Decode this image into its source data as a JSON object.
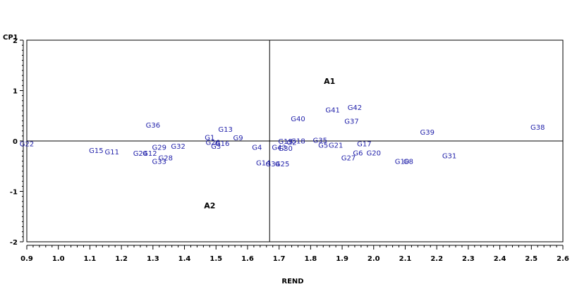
{
  "chart_data": {
    "type": "scatter",
    "title": "",
    "xlabel": "REND",
    "ylabel": "CP1",
    "xlim": [
      0.9,
      2.6
    ],
    "ylim": [
      -2,
      2
    ],
    "x_ticks": [
      "0.9",
      "1.0",
      "1.1",
      "1.2",
      "1.3",
      "1.4",
      "1.5",
      "1.6",
      "1.7",
      "1.8",
      "1.9",
      "2.0",
      "2.1",
      "2.2",
      "2.3",
      "2.4",
      "2.5",
      "2.6"
    ],
    "y_ticks": [
      "2",
      "1",
      "0",
      "-1",
      "-2"
    ],
    "reference_lines": {
      "x": 1.67,
      "y": 0
    },
    "grid": false,
    "label_color": "#2222aa",
    "environment_color": "#000000",
    "series": [
      {
        "name": "",
        "points": [
          {
            "label": "G22",
            "x": 0.9,
            "y": -0.05
          },
          {
            "label": "G15",
            "x": 1.12,
            "y": -0.18
          },
          {
            "label": "G11",
            "x": 1.17,
            "y": -0.21
          },
          {
            "label": "G24",
            "x": 1.26,
            "y": -0.24
          },
          {
            "label": "G12",
            "x": 1.29,
            "y": -0.24
          },
          {
            "label": "G29",
            "x": 1.32,
            "y": -0.12
          },
          {
            "label": "G32",
            "x": 1.38,
            "y": -0.1
          },
          {
            "label": "G33",
            "x": 1.32,
            "y": -0.4
          },
          {
            "label": "G28",
            "x": 1.34,
            "y": -0.33
          },
          {
            "label": "G36",
            "x": 1.3,
            "y": 0.32
          },
          {
            "label": "G1",
            "x": 1.48,
            "y": 0.08
          },
          {
            "label": "G13",
            "x": 1.53,
            "y": 0.24
          },
          {
            "label": "G9",
            "x": 1.57,
            "y": 0.07
          },
          {
            "label": "G26",
            "x": 1.49,
            "y": -0.02
          },
          {
            "label": "G16",
            "x": 1.52,
            "y": -0.04
          },
          {
            "label": "G3",
            "x": 1.5,
            "y": -0.1
          },
          {
            "label": "G4",
            "x": 1.63,
            "y": -0.12
          },
          {
            "label": "G14",
            "x": 1.65,
            "y": -0.43
          },
          {
            "label": "G34",
            "x": 1.68,
            "y": -0.45
          },
          {
            "label": "G25",
            "x": 1.71,
            "y": -0.45
          },
          {
            "label": "G40",
            "x": 1.76,
            "y": 0.45
          },
          {
            "label": "G41",
            "x": 1.87,
            "y": 0.62
          },
          {
            "label": "G42",
            "x": 1.94,
            "y": 0.67
          },
          {
            "label": "G37",
            "x": 1.93,
            "y": 0.4
          },
          {
            "label": "G19",
            "x": 1.72,
            "y": 0.0
          },
          {
            "label": "G2",
            "x": 1.74,
            "y": -0.02
          },
          {
            "label": "G18",
            "x": 1.76,
            "y": 0.01
          },
          {
            "label": "G30",
            "x": 1.72,
            "y": -0.14
          },
          {
            "label": "G43",
            "x": 1.7,
            "y": -0.12
          },
          {
            "label": "G35",
            "x": 1.83,
            "y": 0.02
          },
          {
            "label": "G5",
            "x": 1.84,
            "y": -0.08
          },
          {
            "label": "G21",
            "x": 1.88,
            "y": -0.08
          },
          {
            "label": "G17",
            "x": 1.97,
            "y": -0.05
          },
          {
            "label": "G6",
            "x": 1.95,
            "y": -0.23
          },
          {
            "label": "G27",
            "x": 1.92,
            "y": -0.33
          },
          {
            "label": "G20",
            "x": 2.0,
            "y": -0.23
          },
          {
            "label": "G10",
            "x": 2.09,
            "y": -0.4
          },
          {
            "label": "G8",
            "x": 2.11,
            "y": -0.4
          },
          {
            "label": "G39",
            "x": 2.17,
            "y": 0.18
          },
          {
            "label": "G31",
            "x": 2.24,
            "y": -0.29
          },
          {
            "label": "G38",
            "x": 2.52,
            "y": 0.28
          }
        ]
      }
    ],
    "environments": [
      {
        "label": "A1",
        "x": 1.86,
        "y": 1.19
      },
      {
        "label": "A2",
        "x": 1.48,
        "y": -1.28
      }
    ]
  }
}
